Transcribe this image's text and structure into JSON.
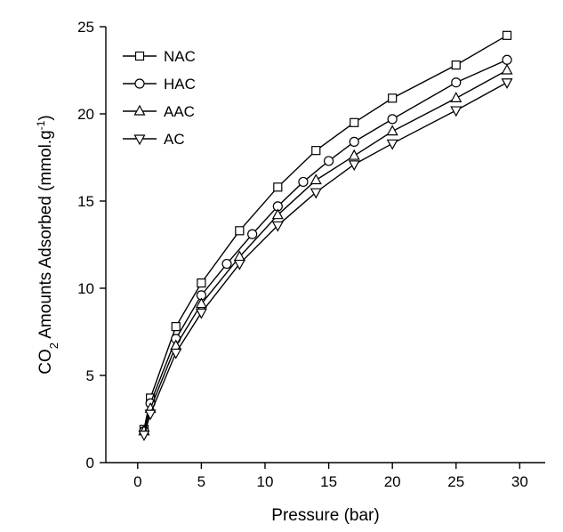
{
  "chart_data": {
    "type": "line",
    "title": "",
    "xlabel": "Pressure (bar)",
    "ylabel_parts": {
      "pre": "CO",
      "sub": "2",
      "mid": " Amounts Adsorbed (mmol.g",
      "sup": "-1",
      "post": ")"
    },
    "xlim": [
      -2.5,
      32
    ],
    "ylim": [
      0,
      25
    ],
    "xticks": [
      0,
      5,
      10,
      15,
      20,
      25,
      30
    ],
    "yticks": [
      0,
      5,
      10,
      15,
      20,
      25
    ],
    "grid": false,
    "legend": "top-left",
    "series": [
      {
        "name": "NAC",
        "marker": "square",
        "x": [
          0.5,
          1,
          3,
          5,
          8,
          11,
          14,
          17,
          20,
          25,
          29
        ],
        "y": [
          1.9,
          3.7,
          7.8,
          10.3,
          13.3,
          15.8,
          17.9,
          19.5,
          20.9,
          22.8,
          24.5
        ]
      },
      {
        "name": "HAC",
        "marker": "circle",
        "x": [
          0.5,
          1,
          3,
          5,
          7,
          9,
          11,
          13,
          15,
          17,
          20,
          25,
          29
        ],
        "y": [
          1.8,
          3.4,
          7.1,
          9.6,
          11.4,
          13.1,
          14.7,
          16.1,
          17.3,
          18.4,
          19.7,
          21.8,
          23.1
        ]
      },
      {
        "name": "AAC",
        "marker": "triangle-up",
        "x": [
          0.5,
          1,
          3,
          5,
          8,
          11,
          14,
          17,
          20,
          25,
          29
        ],
        "y": [
          1.8,
          3.1,
          6.7,
          9.1,
          11.8,
          14.2,
          16.2,
          17.6,
          19.0,
          20.9,
          22.5
        ]
      },
      {
        "name": "AC",
        "marker": "triangle-down",
        "x": [
          0.5,
          1,
          3,
          5,
          8,
          11,
          14,
          17,
          20,
          25,
          29
        ],
        "y": [
          1.6,
          2.8,
          6.3,
          8.6,
          11.4,
          13.6,
          15.5,
          17.1,
          18.3,
          20.2,
          21.8
        ]
      }
    ]
  }
}
